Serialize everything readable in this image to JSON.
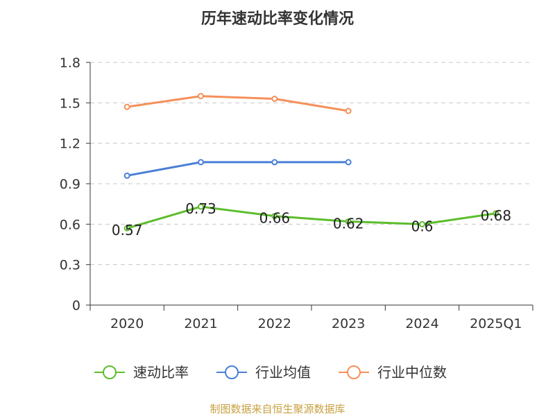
{
  "chart_data": {
    "type": "line",
    "title": "历年速动比率变化情况",
    "categories": [
      "2020",
      "2021",
      "2022",
      "2023",
      "2024",
      "2025Q1"
    ],
    "ylim": [
      0,
      1.8
    ],
    "yticks": [
      "0",
      "0.3",
      "0.6",
      "0.9",
      "1.2",
      "1.5",
      "1.8"
    ],
    "grid": true,
    "legend_position": "bottom",
    "series": [
      {
        "name": "速动比率",
        "color": "#5cbd2c",
        "values": [
          0.57,
          0.73,
          0.66,
          0.62,
          0.6,
          0.68
        ],
        "labels": [
          "0.57",
          "0.73",
          "0.66",
          "0.62",
          "0.6",
          "0.68"
        ]
      },
      {
        "name": "行业均值",
        "color": "#4a7fd6",
        "values": [
          0.96,
          1.06,
          1.06,
          1.06,
          null,
          null
        ]
      },
      {
        "name": "行业中位数",
        "color": "#f5905a",
        "values": [
          1.47,
          1.55,
          1.53,
          1.44,
          null,
          null
        ]
      }
    ]
  },
  "source_text": "制图数据来自恒生聚源数据库"
}
